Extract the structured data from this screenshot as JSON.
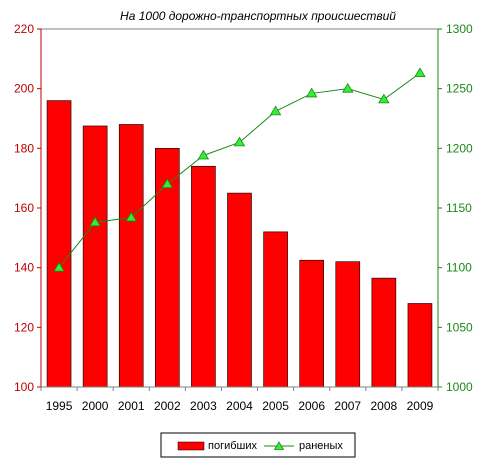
{
  "chart_data": {
    "type": "bar",
    "title": "На 1000 дорожно-транспортных происшествий",
    "categories": [
      "1995",
      "2000",
      "2001",
      "2002",
      "2003",
      "2004",
      "2005",
      "2006",
      "2007",
      "2008",
      "2009"
    ],
    "series": [
      {
        "name": "погибших",
        "type": "bar",
        "axis": "left",
        "color": "#ff0000",
        "values": [
          196,
          187.5,
          188,
          180,
          174,
          165,
          152,
          142.5,
          142,
          136.5,
          128
        ]
      },
      {
        "name": "раненых",
        "type": "line",
        "axis": "right",
        "color": "#1a8a1a",
        "marker_color": "#33ee33",
        "values": [
          1100,
          1138,
          1142,
          1170,
          1194,
          1205,
          1231,
          1246,
          1250,
          1241,
          1263
        ]
      }
    ],
    "y_left": {
      "min": 100,
      "max": 220,
      "ticks": [
        "100",
        "120",
        "140",
        "160",
        "180",
        "200",
        "220"
      ]
    },
    "y_right": {
      "min": 1000,
      "max": 1300,
      "ticks": [
        "1000",
        "1050",
        "1100",
        "1150",
        "1200",
        "1250",
        "1300"
      ]
    },
    "grid": false,
    "legend_position": "bottom",
    "xlabel": "",
    "ylabel": ""
  }
}
